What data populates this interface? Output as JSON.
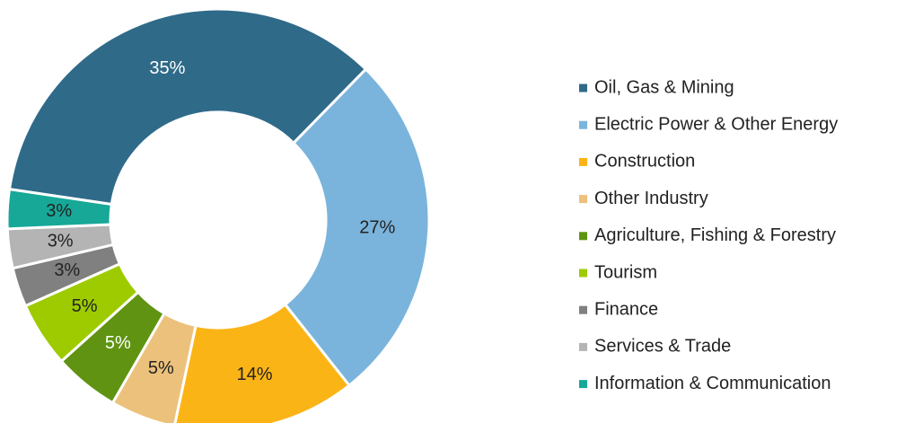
{
  "chart_data": {
    "type": "donut",
    "categories": [
      "Oil, Gas & Mining",
      "Electric Power & Other Energy",
      "Construction",
      "Other Industry",
      "Agriculture, Fishing & Forestry",
      "Tourism",
      "Finance",
      "Services & Trade",
      "Information & Communication"
    ],
    "values": [
      35,
      27,
      14,
      5,
      5,
      5,
      3,
      3,
      3
    ],
    "value_labels": [
      "35%",
      "27%",
      "14%",
      "5%",
      "5%",
      "5%",
      "3%",
      "3%",
      "3%"
    ],
    "colors": [
      "#2f6a89",
      "#7ab4dc",
      "#fbb415",
      "#ecc17b",
      "#5f9311",
      "#9dcb00",
      "#808080",
      "#b4b4b4",
      "#17a898"
    ],
    "legend": "right"
  }
}
